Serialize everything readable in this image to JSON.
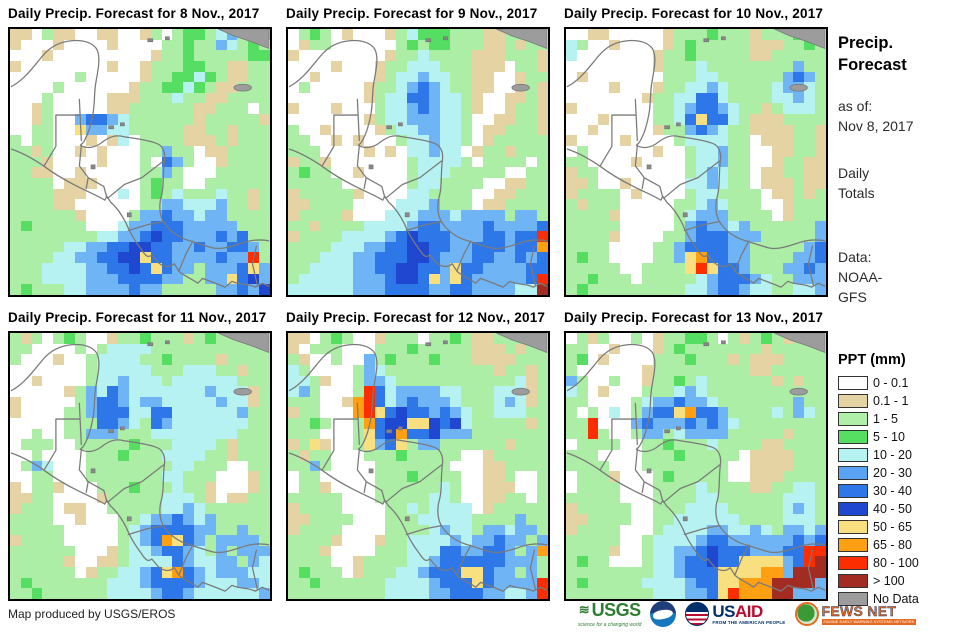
{
  "sidebar": {
    "title_line1": "Precip.",
    "title_line2": "Forecast",
    "as_of_label": "as of:",
    "as_of_date": "Nov 8, 2017",
    "totals_line1": "Daily",
    "totals_line2": "Totals",
    "data_label": "Data:",
    "data_source_line1": "NOAA-",
    "data_source_line2": "GFS"
  },
  "legend": {
    "title": "PPT (mm)",
    "items": [
      {
        "label": "0 - 0.1",
        "color": "#ffffff"
      },
      {
        "label": "0.1 - 1",
        "color": "#e6d3a4"
      },
      {
        "label": "1 - 5",
        "color": "#b0efa8"
      },
      {
        "label": "5 - 10",
        "color": "#55de62"
      },
      {
        "label": "10 - 20",
        "color": "#b6f2f2"
      },
      {
        "label": "20 - 30",
        "color": "#5aa2f2"
      },
      {
        "label": "30 - 40",
        "color": "#2e77e8"
      },
      {
        "label": "40 - 50",
        "color": "#2047d0"
      },
      {
        "label": "50 - 65",
        "color": "#f8df7f"
      },
      {
        "label": "65 - 80",
        "color": "#ffa013"
      },
      {
        "label": "80 - 100",
        "color": "#fc2d00"
      },
      {
        "label": "> 100",
        "color": "#a32c22"
      },
      {
        "label": "No Data",
        "color": "#9c9c9c"
      }
    ]
  },
  "footer": {
    "credit": "Map produced by USGS/EROS",
    "usgs_name": "USGS",
    "usgs_tagline": "science for a changing world",
    "usaid_us": "US",
    "usaid_aid": "AID",
    "usaid_tagline": "FROM THE AMERICAN PEOPLE",
    "fews_name": "FEWS NET",
    "fews_tagline": "FAMINE EARLY WARNING SYSTEMS NETWORK"
  },
  "map_palette": {
    "w": "#ffffff",
    "t": "#e6d3a4",
    "g": "#aceea6",
    "G": "#55de62",
    "c": "#b6f2f2",
    "b": "#6fb5f5",
    "B": "#2e77e8",
    "D": "#2047d0",
    "y": "#f8df7f",
    "o": "#ffa013",
    "r": "#fc2d00",
    "R": "#a32c22",
    "n": "#9c9c9c"
  },
  "panels": [
    {
      "title": "Daily Precip. Forecast for 8 Nov., 2017",
      "grid": [
        "ttwgttwwttwwtgwgGGgcbgGG",
        "twwwtwwwwtwwwwggGggbcgGg",
        "wwwtwwwwwwwwwtggGgggggGG",
        "twwwwwwwwtwwtgggGGggttgg",
        "wwwwwwgwwwwwtggGGcGgttgg",
        "wwwwgwwwwwwtggGGcGgttggg",
        "wwwgwwwwwtttgggcggttgggg",
        "wwtgwwwwwttggggggttgggwg",
        "wwtgwwbBBbcggggggtgggggt",
        "wwggwwybbccgggggttggtggg",
        "gwggwwwtwtcwggggtttgtggg",
        "ggtgwwtwtwwwggbggwttgggg",
        "gggtwwwwtwwwgwBbgwwtgggg",
        "ggttwwtwwwwwggbgwwwggggg",
        "ggggwtttwwwwgGggwwgggggg",
        "ggggtttwwwcwgGgcgggcggtg",
        "ggggttтwwwwwggbbcccbggtg",
        "ggggggtwwwwgbbBbbcbbgggg",
        "gGgggggwwwcbbBBBbbbbbggg",
        "ggggggggccbbBDBBbbbBbBgg",
        "gggggccbbBBDDBBbbBbbBBbg",
        "ggggccbbBBDDyBBbbbbBbbrg",
        "gggccccbbBBDByBbbgbbbByb",
        "gggccccbbbBBBBbbggbbyBDb",
        "gGgggccbbbbBbbgggggbbBbD"
      ]
    },
    {
      "title": "Daily Precip. Forecast for 9 Nov., 2017",
      "grid": [
        "wgGgwtwwwtgcGGGgggttggtg",
        "wtggwwwwwwgGgGGgggttgtgg",
        "twwwwwwwwtggcggggtttgggt",
        "wwwwtwwwtggcccgggtttwggt",
        "wwtwwwwwtgccbccggttwwtgg",
        "wgwwwwwtggcbBbcggttwwtgt",
        "wwwwwwwtgccBBbccgtwwttgt",
        "twwwtwwwgccbBbccgtwwtggt",
        "wwwwwwwtgccbbbccgwwttggt",
        "gwwtwwwwtgccbbccgwttgggt",
        "ggwwtwtwwwgccbccgwtggggg",
        "gggwwwwtwtwccbccwtggtggg",
        "tggtwwwwwwwgccccgwggggwg",
        "gGggwwtwwwwgcccgggggwwgg",
        "gggggwwwwwwgccggggwwttgg",
        "tgggggtwwwwccggggwwttggg",
        "ttggggwwwwcccbgggwttgggg",
        "tggggtwwwcccbbbcbbbbgbbg",
        "ggtggggccccbBBbbbbBbbbbB",
        "tggggccccbBDBBBbbbBBbBBr",
        "ggggcccbbBBDDBBbbBBBbBBo",
        "gggcccbbBBBDDBbbbBBbbBbB",
        "ggccccbbBBDDBBbyBBbbbbBB",
        "gcccccbbbBDDBybyBbbbbbBr",
        "ccccccbbbBBBBbbBBbbbbccR"
      ]
    },
    {
      "title": "Daily Precip. Forecast for 10 Nov., 2017",
      "grid": [
        "wwttwwwwwtgggGgggtgggGgg",
        "cgwwtwwwwtgGgggggtttggGg",
        "cwwwwwwwtggGgggggttggggg",
        "wwwwwwwwtgggcggggggggbgg",
        "wtwwwwwwwgggccggggggbBbg",
        "wwwwtwwwtggccbcggggcbbcg",
        "wwwwwwwtggccBBcggggccbcg",
        "twwwwwwwggcbBBbcggtgcccg",
        "wwwtwwwwggcByBBcgtttgggg",
        "wwtwwwwwtggbBbcggttttggt",
        "twwwwtwwwwgccccggwtttggt",
        "wgwwwwwwtwwgccbggwwttggt",
        "ggwwwwtwwwwgccbggwwtggtt",
        "tggwwwwwwwwgcbcggwttggtt",
        "ttgwwtwwwwwccbcggwtttgtt",
        "tggggwtwwwwgccggggwttgtg",
        "gtgggwwwwwggcbcgggwwtggg",
        "ggggtwwwwwgcbbbggggwtggg",
        "gggggwwwwwgbBbbcbggggggb",
        "ggggtwwwwggbBBBbbbgggggb",
        "ggggwwwwggbBBBBbbgggggbB",
        "gGggwwwwggbyoBBbbggggbbB",
        "gggggwwggggyryBBbgggbbBb",
        "ggGgggwgggggcbBBBbcggbbb",
        "gGgggggggggccbBBbccggccb"
      ]
    },
    {
      "title": "Daily Precip. Forecast for 11 Nov., 2017",
      "grid": [
        "gtgwgGgwwtggGgggtgGgggtg",
        "ggwwwwgwgccccggggggggggg",
        "gwwwtwwgccccggGggggtgggg",
        "wwwwwwwgcccccgggcccggtgg",
        "wwtwwwwgccbcccgccccccggg",
        "wwwwwtgbcBbcccccccbccctg",
        "twwwwwgbBBbcbbcccccbcctg",
        "twwwwggbBBBccBBccccccbgg",
        "wwwwwgggBBbcgBbcccccccgg",
        "wwgwwggbbbgggccccccccggg",
        "wgggwwgggggGgggccccgtggg",
        "wwgwwwwgggGgggccccggtggg",
        "wgbcwwwggggggggccgggwwgg",
        "wwggwwwgggggggccgggwwwtg",
        "twggtwwwgggGgggcggtwwwtg",
        "ttggwwwwtgggggcccgtwttgg",
        "tgggwttwwgggggccbcgggggg",
        "ggggwwtwwwggcbbBbcbggggg",
        "gggggwwwwwgcbBBBBbbggbgg",
        "tggggwwwwwgcbBoyBbgbbbbg",
        "ggggggwwwtgccbBBbcgbgbbb",
        "gggggtwwttgccccBbccbbgbc",
        "ggggggwtggccbByoBbcbbbcc",
        "gGgggggggcccbBBBBbcccbbc",
        "ggGggggggccccbBBbccccccb"
      ]
    },
    {
      "title": "Daily Precip. Forecast for 12 Nov., 2017",
      "grid": [
        "ttwgGgwwtgggwggGgttggggg",
        "twgggwwwgggGgggggtttgtgg",
        "gtwwgwwbgGgggGgggttttggg",
        "cgwwwwgbcggggggggggtggtg",
        "ccgtwwgbbcgggggggggggctg",
        "cbgwwwgrBcbbbbccgggccctg",
        "gggwwtorBcbBbbbcgggcbctg",
        "tggwwworyBDBBbBbcggcccgg",
        "ggGgwwgoBDDyyDBDcgggggtg",
        "gggwwwgyBDoBBDbbbggggggg",
        "tgytwwgybBygbbggggggtggg",
        "gtggwwwgggGgggggwwtggggg",
        "ggbgwwwwgggggggwwwttgggg",
        "wggwwwwwgggGggggwwttgwwg",
        "wggtwwwwggggggcgwwtttwwg",
        "gggggwwwgggggccgwwttggwg",
        "tggggwwwwggcgccccwtggggg",
        "ttggggwwwgggcccccggggbgg",
        "tggggwwwwggggcbccgbbcbbg",
        "ggggtwwwtggccccbcbbBbbgb",
        "gggtwwwwgggcccBBbbBBbgbo",
        "ggggwwtggggccbBBBBBBbbbg",
        "gGgggwtgggccbBBByyBbbgbg",
        "ggGggggggccccbBBByBbbbbr",
        "gggggggggccccbbBBBbbccbr"
      ]
    },
    {
      "title": "Daily Precip. Forecast for 13 Nov., 2017",
      "grid": [
        "wgtgwwgwtggGGgwgtgGgtggg",
        "ggwwtwwwtgGgggggggtggggg",
        "gGwtwwwwgggGgggtgtttgggg",
        "gwwwwwwtgggggggggttggggg",
        "bgwwgwwtggGgcggggggtgtgg",
        "cgwtwwwgggcbcggggggggggg",
        "ggwwwwgcbbBbbcgggggggbgg",
        "gwgwcwgbBByoBBbggggcgbcg",
        "ggrwwwbBbbbBbBbcgggggggg",
        "ggrgwwgbbgcbbbbgggggtggg",
        "wggggwwggGgggcggggttgggg",
        "gggwwwwgggGgggggwttttggg",
        "ggggwwwggggggggwwttttggg",
        "wgggtwwwgGgggggwwtttgggg",
        "wggggwwwggggcggggttggccg",
        "gggggwwwggggccggggggcccg",
        "tgggggwwgggccccgggggcbcg",
        "ttggggwwggccccccggggcccg",
        "tggggwwwgccccbbccbcgbbcb",
        "gggggwwgccccbBBbbbbbbBbB",
        "ggggtwwgccbbBDBBBbbbBBrr",
        "gGggwwwgccbBBDBByyyybBrR",
        "ggggggggccbBBByyyyoobRRR",
        "gGgggggccccbBByyoooRRRRb",
        "ggggggggcccbbByroooRRbbb"
      ]
    }
  ]
}
